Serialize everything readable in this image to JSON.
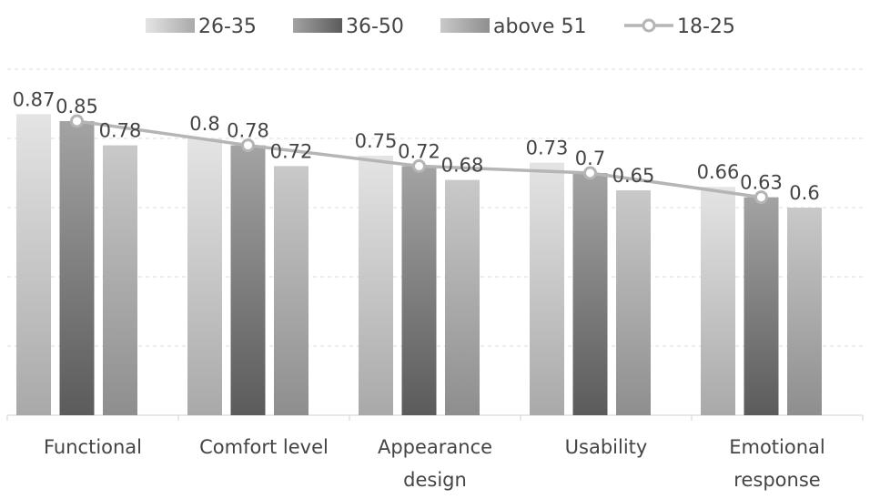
{
  "chart_data": {
    "type": "bar",
    "title": "",
    "xlabel": "",
    "ylabel": "",
    "ylim": [
      0,
      1
    ],
    "grid": true,
    "legend_position": "top",
    "categories": [
      [
        "Functional"
      ],
      [
        "Comfort level"
      ],
      [
        "Appearance",
        "design"
      ],
      [
        "Usability"
      ],
      [
        "Emotional",
        "response"
      ]
    ],
    "bar_series": [
      {
        "name": "26-35",
        "values": [
          0.87,
          0.8,
          0.75,
          0.73,
          0.66
        ],
        "color_top": "#e4e4e4",
        "color_bottom": "#a9a9a9"
      },
      {
        "name": "36-50",
        "values": [
          0.85,
          0.78,
          0.72,
          0.7,
          0.63
        ],
        "color_top": "#a3a3a3",
        "color_bottom": "#5b5b5b"
      },
      {
        "name": "above 51",
        "values": [
          0.78,
          0.72,
          0.68,
          0.65,
          0.6
        ],
        "color_top": "#c9c9c9",
        "color_bottom": "#8e8e8e"
      }
    ],
    "line_series": {
      "name": "18-25",
      "values": [
        0.85,
        0.78,
        0.72,
        0.7,
        0.63
      ],
      "color": "#b5b5b5"
    },
    "data_labels": [
      [
        "0.87",
        "0.85",
        "0.78"
      ],
      [
        "0.8",
        "0.78",
        "0.72"
      ],
      [
        "0.75",
        "0.72",
        "0.68"
      ],
      [
        "0.73",
        "0.7",
        "0.65"
      ],
      [
        "0.66",
        "0.63",
        "0.6"
      ]
    ]
  }
}
